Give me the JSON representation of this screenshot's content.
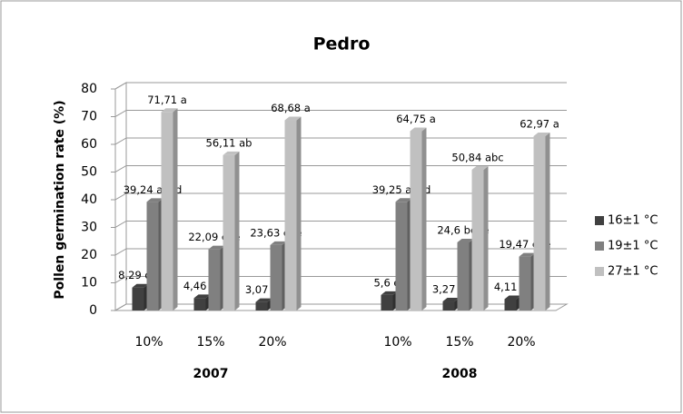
{
  "chart_data": {
    "type": "bar3d",
    "title": "Pedro",
    "y_label": "Pollen germination rate (%)",
    "categories": [
      "10%",
      "15%",
      "20%",
      "10%",
      "15%",
      "20%"
    ],
    "groups": [
      "2007",
      "2008"
    ],
    "ylim": [
      0,
      80
    ],
    "yticks": [
      0,
      10,
      20,
      30,
      40,
      50,
      60,
      70,
      80
    ],
    "grid": true,
    "legend": "right",
    "series": [
      {
        "name": "16±1 °C",
        "color": "#404040",
        "values": [
          8.29,
          4.46,
          3.07,
          5.6,
          3.27,
          4.11
        ],
        "value_labels": [
          "8,29 de",
          "4,46 e",
          "3,07 e",
          "5,6 e",
          "3,27 e",
          "4,11 e"
        ]
      },
      {
        "name": "19±1 °C",
        "color": "#808080",
        "values": [
          39.24,
          22.09,
          23.63,
          39.25,
          24.6,
          19.47
        ],
        "value_labels": [
          "39,24 abcd",
          "22,09 cde",
          "23,63 cde",
          "39,25 abcd",
          "24,6 bcde",
          "19,47 cde"
        ]
      },
      {
        "name": "27±1 °C",
        "color": "#c0c0c0",
        "values": [
          71.71,
          56.11,
          68.68,
          64.75,
          50.84,
          62.97
        ],
        "value_labels": [
          "71,71 a",
          "56,11 ab",
          "68,68 a",
          "64,75 a",
          "50,84 abc",
          "62,97 a"
        ]
      }
    ]
  }
}
